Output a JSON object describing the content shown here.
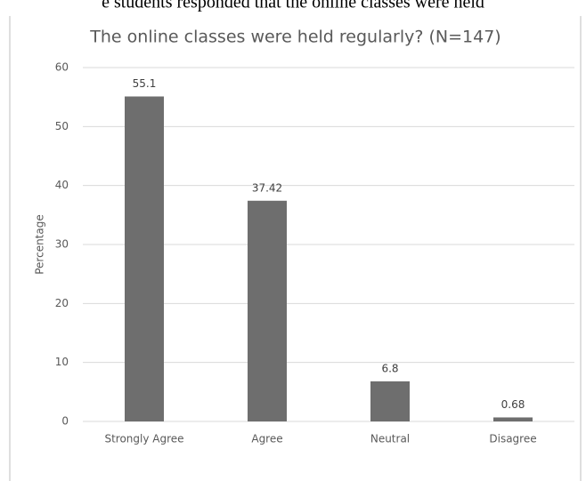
{
  "caption": "e students responded that the online classes were held",
  "chart_data": {
    "type": "bar",
    "title": "The online classes were held regularly? (N=147)",
    "y_label": "Percentage",
    "categories": [
      "Strongly Agree",
      "Agree",
      "Neutral",
      "Disagree"
    ],
    "values": [
      55.1,
      37.42,
      6.8,
      0.68
    ],
    "color": "#6e6e6e",
    "ylim": [
      0,
      60
    ],
    "yticks": [
      0,
      10,
      20,
      30,
      40,
      50,
      60
    ],
    "grid": true
  }
}
